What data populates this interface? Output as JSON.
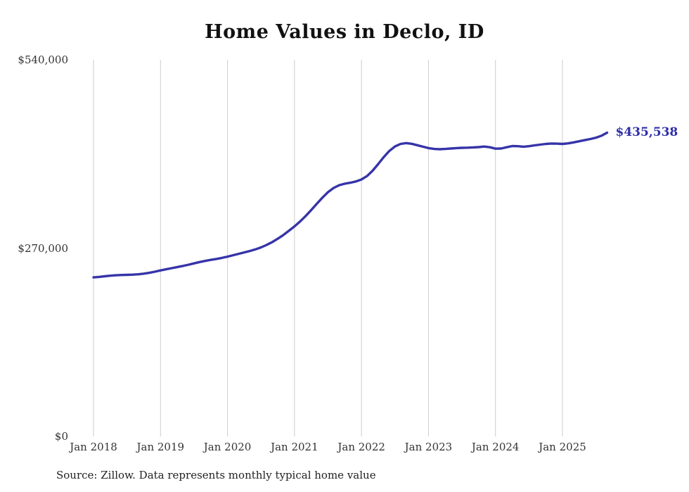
{
  "chart_data": {
    "type": "line",
    "title": "Home Values in Declo, ID",
    "series_name": "Monthly typical home value",
    "x_monthly_start": "2018-01",
    "values": [
      228000,
      228700,
      229600,
      230400,
      231000,
      231400,
      231600,
      231900,
      232500,
      233400,
      234600,
      236200,
      238000,
      239600,
      241200,
      242800,
      244400,
      246200,
      248100,
      250000,
      251600,
      253100,
      254500,
      256000,
      257800,
      259800,
      261800,
      263800,
      265900,
      268200,
      271000,
      274500,
      278600,
      283400,
      288800,
      294800,
      301200,
      308200,
      316000,
      324600,
      333600,
      342400,
      350200,
      356200,
      360200,
      362400,
      363800,
      365600,
      368400,
      373400,
      381000,
      390600,
      400600,
      409400,
      415800,
      419400,
      420600,
      419600,
      417600,
      415400,
      413400,
      412200,
      411800,
      412200,
      412800,
      413400,
      413800,
      414000,
      414400,
      414800,
      415600,
      414600,
      412600,
      412800,
      414600,
      416400,
      416200,
      415400,
      416200,
      417400,
      418400,
      419400,
      420000,
      419800,
      419400,
      420200,
      421600,
      423200,
      424800,
      426400,
      428400,
      431200,
      435538
    ],
    "ylim": [
      0,
      540000
    ],
    "y_ticks": [
      {
        "value": 0,
        "label": "$0"
      },
      {
        "value": 270000,
        "label": "$270,000"
      },
      {
        "value": 540000,
        "label": "$540,000"
      }
    ],
    "x_ticks": [
      {
        "month_index": 0,
        "label": "Jan 2018"
      },
      {
        "month_index": 12,
        "label": "Jan 2019"
      },
      {
        "month_index": 24,
        "label": "Jan 2020"
      },
      {
        "month_index": 36,
        "label": "Jan 2021"
      },
      {
        "month_index": 48,
        "label": "Jan 2022"
      },
      {
        "month_index": 60,
        "label": "Jan 2023"
      },
      {
        "month_index": 72,
        "label": "Jan 2024"
      },
      {
        "month_index": 84,
        "label": "Jan 2025"
      }
    ],
    "end_label": "$435,538",
    "line_color": "#3634a8",
    "grid_color": "#cccccc",
    "grid": "vertical-only",
    "legend": "none",
    "source_note": "Source: Zillow. Data represents monthly typical home value"
  }
}
